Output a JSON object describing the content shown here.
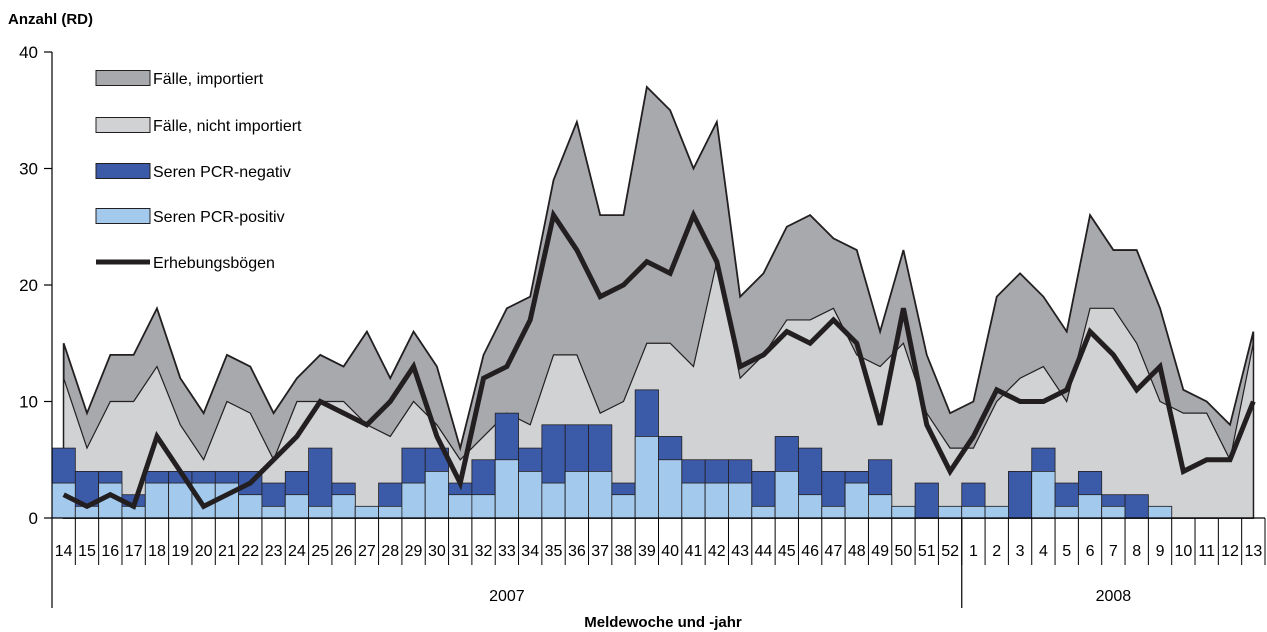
{
  "chart_data": {
    "type": "area",
    "ylabel": "Anzahl (RD)",
    "xlabel": "Meldewoche und -jahr",
    "ylim": [
      0,
      40
    ],
    "yticks": [
      "0",
      "10",
      "20",
      "30",
      "40"
    ],
    "legend_position": "top-left",
    "weeks": [
      "14",
      "15",
      "16",
      "17",
      "18",
      "19",
      "20",
      "21",
      "22",
      "23",
      "24",
      "25",
      "26",
      "27",
      "28",
      "29",
      "30",
      "31",
      "32",
      "33",
      "34",
      "35",
      "36",
      "37",
      "38",
      "39",
      "40",
      "41",
      "42",
      "43",
      "44",
      "45",
      "46",
      "47",
      "48",
      "49",
      "50",
      "51",
      "52",
      "1",
      "2",
      "3",
      "4",
      "5",
      "6",
      "7",
      "8",
      "9",
      "10",
      "11",
      "12",
      "13"
    ],
    "years": [
      {
        "label": "2007",
        "start_index": 0,
        "end_index": 38
      },
      {
        "label": "2008",
        "start_index": 39,
        "end_index": 51
      }
    ],
    "series": [
      {
        "name": "Fälle, importiert",
        "kind": "area",
        "color": "#a7a9ac",
        "values": [
          15,
          9,
          14,
          14,
          18,
          12,
          9,
          14,
          13,
          9,
          12,
          14,
          13,
          16,
          12,
          16,
          13,
          6,
          14,
          18,
          19,
          29,
          34,
          26,
          26,
          37,
          35,
          30,
          34,
          19,
          21,
          25,
          26,
          24,
          23,
          16,
          23,
          14,
          9,
          10,
          19,
          21,
          19,
          16,
          26,
          23,
          23,
          18,
          11,
          10,
          8,
          16
        ]
      },
      {
        "name": "Fälle, nicht importiert",
        "kind": "area",
        "color": "#d1d2d4",
        "values": [
          12,
          6,
          10,
          10,
          13,
          8,
          5,
          10,
          9,
          5,
          10,
          10,
          10,
          8,
          7,
          10,
          8,
          5,
          7,
          9,
          8,
          14,
          14,
          9,
          10,
          15,
          15,
          13,
          22,
          12,
          14,
          17,
          17,
          18,
          14,
          13,
          15,
          9,
          6,
          6,
          10,
          12,
          13,
          10,
          18,
          18,
          15,
          10,
          9,
          9,
          5,
          15
        ]
      },
      {
        "name": "Seren PCR-negativ",
        "kind": "bar",
        "color": "#3b5aa8",
        "values": [
          6,
          4,
          4,
          2,
          4,
          4,
          4,
          4,
          4,
          3,
          4,
          6,
          3,
          1,
          3,
          6,
          6,
          3,
          5,
          9,
          6,
          8,
          8,
          8,
          3,
          11,
          7,
          5,
          5,
          5,
          4,
          7,
          6,
          4,
          4,
          5,
          1,
          3,
          1,
          3,
          1,
          4,
          6,
          3,
          4,
          2,
          2,
          1,
          0,
          0,
          0,
          0
        ]
      },
      {
        "name": "Seren PCR-positiv",
        "kind": "bar",
        "color": "#a3c9ec",
        "values": [
          3,
          1,
          3,
          1,
          3,
          3,
          3,
          3,
          2,
          1,
          2,
          1,
          2,
          1,
          1,
          3,
          4,
          2,
          2,
          5,
          4,
          3,
          4,
          4,
          2,
          7,
          5,
          3,
          3,
          3,
          1,
          4,
          2,
          1,
          3,
          2,
          1,
          0,
          1,
          1,
          1,
          0,
          4,
          1,
          2,
          1,
          0,
          1,
          0,
          0,
          0,
          0
        ]
      },
      {
        "name": "Erhebungsbögen",
        "kind": "line",
        "color": "#231f20",
        "values": [
          2,
          1,
          2,
          1,
          7,
          4,
          1,
          2,
          3,
          5,
          7,
          10,
          9,
          8,
          10,
          13,
          7,
          3,
          12,
          13,
          17,
          26,
          23,
          19,
          20,
          22,
          21,
          26,
          22,
          13,
          14,
          16,
          15,
          17,
          15,
          8,
          18,
          8,
          4,
          7,
          11,
          10,
          10,
          11,
          16,
          14,
          11,
          13,
          4,
          5,
          5,
          10
        ]
      }
    ]
  }
}
